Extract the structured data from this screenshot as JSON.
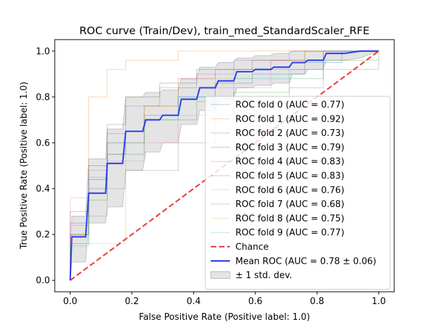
{
  "chart_data": {
    "type": "line",
    "title": "ROC curve (Train/Dev), train_med_StandardScaler_RFE",
    "xlabel": "False Positive Rate (Positive label: 1.0)",
    "ylabel": "True Positive Rate (Positive label: 1.0)",
    "xlim": [
      -0.05,
      1.05
    ],
    "ylim": [
      -0.05,
      1.05
    ],
    "xticks": [
      "0.0",
      "0.2",
      "0.4",
      "0.6",
      "0.8",
      "1.0"
    ],
    "yticks": [
      "0.0",
      "0.2",
      "0.4",
      "0.6",
      "0.8",
      "1.0"
    ],
    "grid": false,
    "legend_position": "lower right",
    "colors": {
      "chance": "#ef3f3f",
      "mean": "#2233ee",
      "band": "#bbbbbb"
    },
    "series": [
      {
        "name": "ROC fold 0 (AUC = 0.77)",
        "color": "#1f77b4",
        "x": [
          0,
          0,
          0.06,
          0.06,
          0.12,
          0.12,
          0.18,
          0.18,
          0.24,
          0.24,
          0.35,
          0.35,
          0.47,
          0.47,
          0.59,
          0.59,
          0.76,
          0.76,
          0.88,
          0.88,
          1.0
        ],
        "y": [
          0,
          0.25,
          0.25,
          0.4,
          0.4,
          0.55,
          0.55,
          0.65,
          0.65,
          0.72,
          0.72,
          0.8,
          0.8,
          0.86,
          0.86,
          0.9,
          0.9,
          0.95,
          0.95,
          1.0,
          1.0
        ]
      },
      {
        "name": "ROC fold 1 (AUC = 0.92)",
        "color": "#ff7f0e",
        "x": [
          0,
          0,
          0.06,
          0.06,
          0.12,
          0.12,
          0.18,
          0.18,
          0.35,
          0.35,
          1.0
        ],
        "y": [
          0,
          0.2,
          0.2,
          0.8,
          0.8,
          0.92,
          0.92,
          0.96,
          0.96,
          1.0,
          1.0
        ]
      },
      {
        "name": "ROC fold 2 (AUC = 0.73)",
        "color": "#2ca02c",
        "x": [
          0,
          0,
          0.06,
          0.06,
          0.12,
          0.12,
          0.24,
          0.24,
          0.41,
          0.41,
          0.53,
          0.53,
          0.71,
          0.71,
          0.82,
          0.82,
          1.0
        ],
        "y": [
          0,
          0.2,
          0.2,
          0.35,
          0.35,
          0.55,
          0.55,
          0.7,
          0.7,
          0.78,
          0.78,
          0.82,
          0.82,
          0.88,
          0.88,
          0.96,
          0.96
        ]
      },
      {
        "name": "ROC fold 3 (AUC = 0.79)",
        "color": "#d62728",
        "x": [
          0,
          0,
          0.06,
          0.06,
          0.12,
          0.12,
          0.24,
          0.24,
          0.35,
          0.35,
          0.47,
          0.47,
          0.65,
          0.65,
          0.82,
          0.82,
          1.0
        ],
        "y": [
          0,
          0.3,
          0.3,
          0.5,
          0.5,
          0.6,
          0.6,
          0.76,
          0.76,
          0.88,
          0.88,
          0.92,
          0.92,
          0.96,
          0.96,
          1.0,
          1.0
        ]
      },
      {
        "name": "ROC fold 4 (AUC = 0.83)",
        "color": "#9467bd",
        "x": [
          0,
          0,
          0.06,
          0.06,
          0.12,
          0.12,
          0.18,
          0.18,
          0.29,
          0.29,
          0.41,
          0.41,
          0.53,
          0.53,
          0.71,
          0.71,
          1.0
        ],
        "y": [
          0,
          0.24,
          0.24,
          0.48,
          0.48,
          0.64,
          0.64,
          0.76,
          0.76,
          0.84,
          0.84,
          0.9,
          0.9,
          0.96,
          0.96,
          1.0,
          1.0
        ]
      },
      {
        "name": "ROC fold 5 (AUC = 0.83)",
        "color": "#8c564b",
        "x": [
          0,
          0,
          0.06,
          0.06,
          0.12,
          0.12,
          0.18,
          0.18,
          0.29,
          0.29,
          0.41,
          0.41,
          0.59,
          0.59,
          0.76,
          0.76,
          1.0
        ],
        "y": [
          0,
          0.2,
          0.2,
          0.44,
          0.44,
          0.68,
          0.68,
          0.8,
          0.8,
          0.86,
          0.86,
          0.92,
          0.92,
          0.96,
          0.96,
          1.0,
          1.0
        ]
      },
      {
        "name": "ROC fold 6 (AUC = 0.76)",
        "color": "#e377c2",
        "x": [
          0,
          0,
          0.06,
          0.06,
          0.12,
          0.12,
          0.24,
          0.24,
          0.35,
          0.35,
          0.47,
          0.47,
          0.65,
          0.65,
          0.82,
          0.82,
          1.0
        ],
        "y": [
          0,
          0.36,
          0.36,
          0.44,
          0.44,
          0.52,
          0.52,
          0.6,
          0.6,
          0.72,
          0.72,
          0.84,
          0.84,
          0.92,
          0.92,
          1.0,
          1.0
        ]
      },
      {
        "name": "ROC fold 7 (AUC = 0.68)",
        "color": "#7f7f7f",
        "x": [
          0,
          0,
          0.06,
          0.06,
          0.12,
          0.12,
          0.18,
          0.18,
          0.35,
          0.35,
          0.47,
          0.47,
          0.53,
          0.53,
          0.71,
          0.71,
          0.82,
          0.82,
          1.0,
          1.0
        ],
        "y": [
          0,
          0.16,
          0.16,
          0.28,
          0.28,
          0.4,
          0.4,
          0.48,
          0.48,
          0.6,
          0.6,
          0.72,
          0.72,
          0.8,
          0.8,
          0.84,
          0.84,
          0.92,
          0.92,
          1.0
        ]
      },
      {
        "name": "ROC fold 8 (AUC = 0.75)",
        "color": "#bcbd22",
        "x": [
          0,
          0,
          0.06,
          0.06,
          0.18,
          0.18,
          0.24,
          0.24,
          0.35,
          0.35,
          0.47,
          0.47,
          0.59,
          0.59,
          0.76,
          0.76,
          1.0
        ],
        "y": [
          0,
          0.16,
          0.16,
          0.16,
          0.16,
          0.6,
          0.6,
          0.76,
          0.76,
          0.84,
          0.84,
          0.88,
          0.88,
          0.92,
          0.92,
          1.0,
          1.0
        ]
      },
      {
        "name": "ROC fold 9 (AUC = 0.77)",
        "color": "#17becf",
        "x": [
          0,
          0,
          0.06,
          0.06,
          0.12,
          0.12,
          0.24,
          0.24,
          0.35,
          0.35,
          0.53,
          0.53,
          0.71,
          0.71,
          0.82,
          0.82,
          1.0
        ],
        "y": [
          0,
          0.15,
          0.15,
          0.45,
          0.45,
          0.6,
          0.6,
          0.7,
          0.7,
          0.8,
          0.8,
          0.88,
          0.88,
          0.92,
          0.92,
          1.0,
          1.0
        ]
      }
    ],
    "chance": {
      "name": "Chance",
      "x": [
        0,
        1
      ],
      "y": [
        0,
        1
      ]
    },
    "mean": {
      "name": "Mean ROC (AUC = 0.78 ± 0.06)",
      "x": [
        0,
        0.005,
        0.05,
        0.06,
        0.115,
        0.12,
        0.17,
        0.18,
        0.235,
        0.245,
        0.29,
        0.3,
        0.35,
        0.36,
        0.41,
        0.42,
        0.47,
        0.48,
        0.53,
        0.54,
        0.59,
        0.6,
        0.65,
        0.66,
        0.71,
        0.72,
        0.76,
        0.77,
        0.82,
        0.83,
        0.88,
        0.89,
        0.94,
        1.0
      ],
      "y": [
        0,
        0.19,
        0.19,
        0.38,
        0.38,
        0.51,
        0.51,
        0.65,
        0.65,
        0.7,
        0.7,
        0.72,
        0.72,
        0.79,
        0.79,
        0.84,
        0.84,
        0.87,
        0.87,
        0.91,
        0.91,
        0.92,
        0.92,
        0.93,
        0.93,
        0.95,
        0.95,
        0.96,
        0.96,
        0.99,
        0.99,
        0.99,
        1.0,
        1.0
      ]
    },
    "band": {
      "name": "± 1 std. dev.",
      "x": [
        0,
        0.005,
        0.05,
        0.06,
        0.115,
        0.12,
        0.17,
        0.18,
        0.235,
        0.245,
        0.29,
        0.3,
        0.35,
        0.36,
        0.41,
        0.42,
        0.47,
        0.48,
        0.53,
        0.54,
        0.59,
        0.6,
        0.65,
        0.66,
        0.71,
        0.72,
        0.76,
        0.77,
        0.82,
        0.83,
        0.88,
        0.89,
        0.94,
        1.0
      ],
      "upper": [
        0,
        0.28,
        0.28,
        0.53,
        0.53,
        0.66,
        0.66,
        0.8,
        0.8,
        0.82,
        0.82,
        0.83,
        0.83,
        0.88,
        0.88,
        0.93,
        0.93,
        0.95,
        0.95,
        0.97,
        0.97,
        0.98,
        0.98,
        0.99,
        0.99,
        1.0,
        1.0,
        1.0,
        1.0,
        1.0,
        1.0,
        1.0,
        1.0,
        1.0
      ],
      "lower": [
        0,
        0.08,
        0.08,
        0.25,
        0.25,
        0.32,
        0.32,
        0.48,
        0.48,
        0.56,
        0.56,
        0.6,
        0.6,
        0.68,
        0.68,
        0.74,
        0.74,
        0.79,
        0.79,
        0.84,
        0.84,
        0.85,
        0.85,
        0.86,
        0.86,
        0.9,
        0.9,
        0.92,
        0.92,
        0.96,
        0.96,
        0.96,
        0.97,
        1.0
      ]
    }
  }
}
